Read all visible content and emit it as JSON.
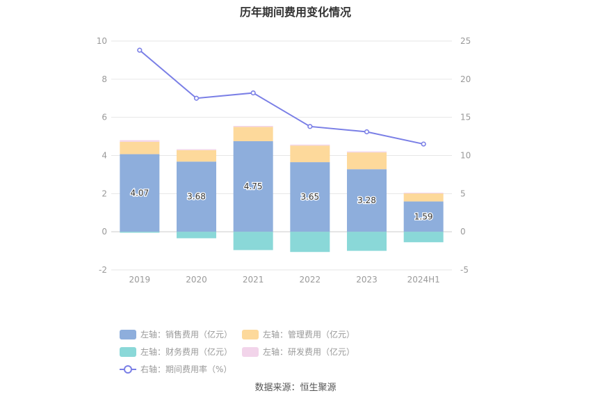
{
  "chart_data": {
    "type": "bar",
    "title": "历年期间费用变化情况",
    "categories": [
      "2019",
      "2020",
      "2021",
      "2022",
      "2023",
      "2024H1"
    ],
    "left_axis": {
      "ylim": [
        -2,
        10
      ],
      "ticks": [
        "10",
        "8",
        "6",
        "4",
        "2",
        "0",
        "-2"
      ]
    },
    "right_axis": {
      "ylim": [
        -5,
        25
      ],
      "ticks": [
        "25",
        "20",
        "15",
        "10",
        "5",
        "0",
        "-5"
      ]
    },
    "series": [
      {
        "name": "左轴：销售费用（亿元）",
        "type": "bar",
        "axis": "left",
        "color": "#8eaedc",
        "values": [
          4.07,
          3.68,
          4.75,
          3.65,
          3.28,
          1.59
        ],
        "labels": [
          "4.07",
          "3.68",
          "4.75",
          "3.65",
          "3.28",
          "1.59"
        ]
      },
      {
        "name": "左轴：管理费用（亿元）",
        "type": "bar",
        "axis": "left",
        "color": "#fdd99b",
        "values": [
          0.65,
          0.6,
          0.75,
          0.87,
          0.88,
          0.42
        ]
      },
      {
        "name": "左轴：财务费用（亿元）",
        "type": "bar",
        "axis": "left",
        "color": "#8ad8d8",
        "values": [
          -0.05,
          -0.34,
          -0.96,
          -1.06,
          -1.0,
          -0.55
        ]
      },
      {
        "name": "左轴：研发费用（亿元）",
        "type": "bar",
        "axis": "left",
        "color": "#f2d4ea",
        "values": [
          0.08,
          0.05,
          0.05,
          0.05,
          0.05,
          0.04
        ]
      },
      {
        "name": "右轴：期间费用率（%）",
        "type": "line",
        "axis": "right",
        "color": "#7a7fe6",
        "values": [
          23.8,
          17.5,
          18.2,
          13.8,
          13.1,
          11.5
        ]
      }
    ],
    "legend_position": "bottom",
    "grid": true
  },
  "source_text": "数据来源：恒生聚源"
}
